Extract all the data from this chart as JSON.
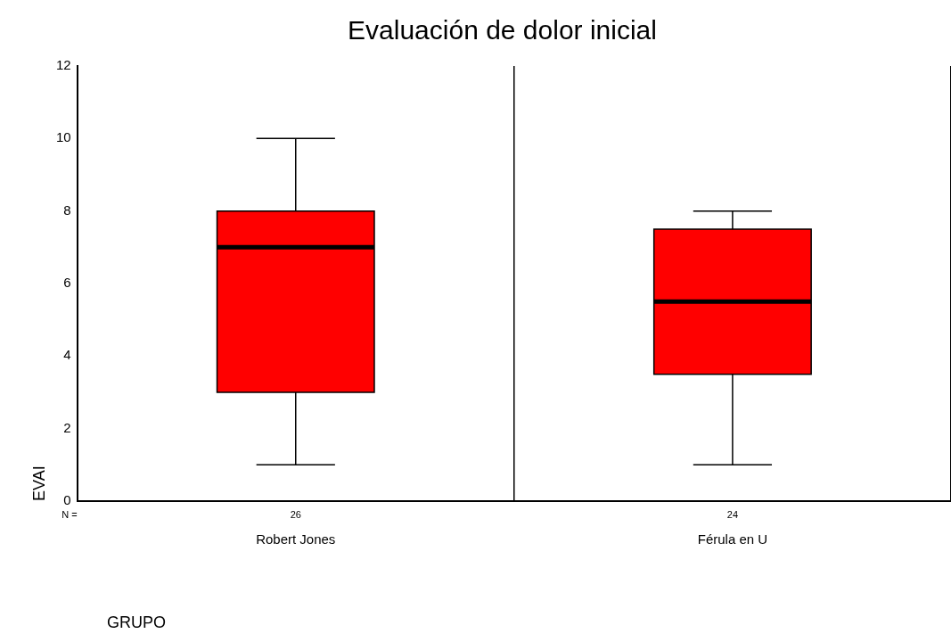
{
  "chart_data": {
    "type": "box",
    "title": "Evaluación de dolor inicial",
    "xlabel": "GRUPO",
    "ylabel": "EVAI",
    "categories": [
      "Robert Jones",
      "Férula en U"
    ],
    "series": [
      {
        "color": "#ff0000",
        "boxes": [
          {
            "low": 1,
            "q1": 3,
            "median": 7,
            "q3": 8,
            "high": 10
          },
          {
            "low": 1,
            "q1": 3.5,
            "median": 5.5,
            "q3": 7.5,
            "high": 8
          }
        ]
      }
    ],
    "ylim": [
      0,
      12
    ],
    "yticks": [
      0,
      2,
      4,
      6,
      8,
      10,
      12
    ],
    "grid": "x",
    "legend": false,
    "annotations": [
      "N =",
      "26",
      "24"
    ]
  }
}
